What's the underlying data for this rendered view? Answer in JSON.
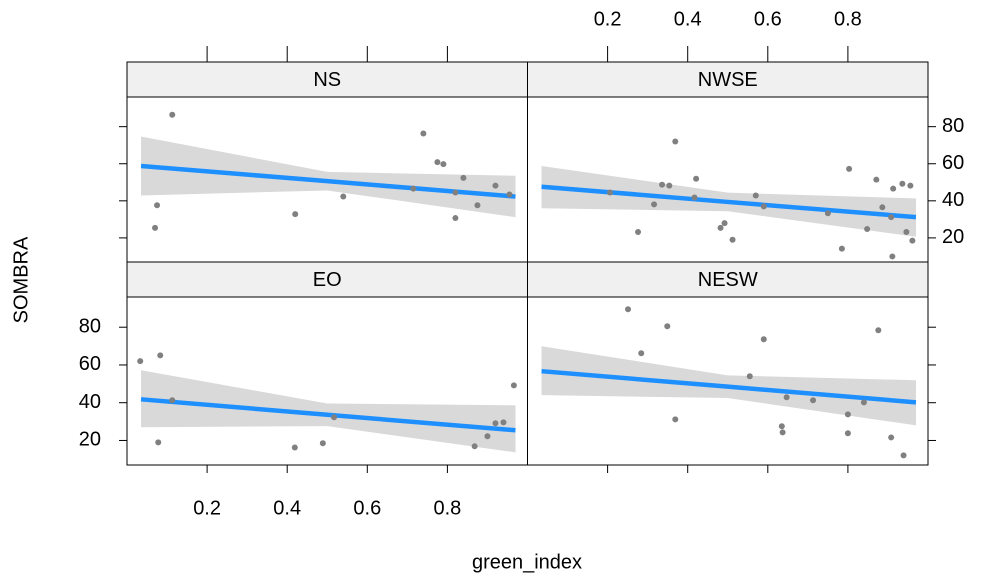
{
  "chart_data": {
    "type": "scatter",
    "xlabel": "green_index",
    "ylabel": "SOMBRA",
    "xlim": [
      0.0,
      1.0
    ],
    "ylim": [
      7,
      96
    ],
    "xticks": [
      0.2,
      0.4,
      0.6,
      0.8
    ],
    "yticks": [
      20,
      40,
      60,
      80
    ],
    "point_color": "#808080",
    "line_color": "#1e8fff",
    "band_color": "#d9d9d9",
    "strip_color": "#f0f0f0",
    "panels": [
      {
        "title": "NS",
        "x": [
          0.113,
          0.075,
          0.07,
          0.42,
          0.54,
          0.74,
          0.775,
          0.79,
          0.715,
          0.82,
          0.84,
          0.82,
          0.875,
          0.92,
          0.955
        ],
        "y": [
          86.4,
          37.6,
          25.4,
          32.8,
          42.3,
          76.3,
          60.9,
          59.8,
          46.6,
          44.5,
          52.4,
          30.7,
          37.6,
          48.2,
          43.4
        ],
        "fit": {
          "x": [
            0.035,
            0.5,
            0.97
          ],
          "y": [
            58.8,
            50.6,
            42.3
          ],
          "lower": [
            42.9,
            45.6,
            31.2
          ],
          "upper": [
            74.7,
            55.6,
            53.5
          ]
        }
      },
      {
        "title": "NWSE",
        "x": [
          0.206,
          0.316,
          0.276,
          0.336,
          0.354,
          0.369,
          0.417,
          0.421,
          0.482,
          0.492,
          0.512,
          0.57,
          0.59,
          0.75,
          0.785,
          0.803,
          0.848,
          0.871,
          0.886,
          0.908,
          0.913,
          0.911,
          0.936,
          0.946,
          0.956,
          0.961
        ],
        "y": [
          44.5,
          38.1,
          23.2,
          48.7,
          48.2,
          72.0,
          41.8,
          51.9,
          25.4,
          28.0,
          19.0,
          42.9,
          37.0,
          33.3,
          14.2,
          57.2,
          24.8,
          51.4,
          36.5,
          31.2,
          46.6,
          10.0,
          49.2,
          23.2,
          48.2,
          18.5
        ],
        "fit": {
          "x": [
            0.035,
            0.5,
            0.97
          ],
          "y": [
            47.6,
            39.4,
            31.2
          ],
          "lower": [
            36.0,
            34.4,
            20.6
          ],
          "upper": [
            58.8,
            44.4,
            41.3
          ]
        }
      },
      {
        "title": "EO",
        "x": [
          0.033,
          0.083,
          0.113,
          0.078,
          0.419,
          0.489,
          0.517,
          0.868,
          0.9,
          0.92,
          0.94,
          0.966
        ],
        "y": [
          62.0,
          65.1,
          41.3,
          19.0,
          16.3,
          18.5,
          32.3,
          16.9,
          22.2,
          29.1,
          29.6,
          49.2
        ],
        "fit": {
          "x": [
            0.035,
            0.5,
            0.97
          ],
          "y": [
            41.8,
            33.6,
            25.4
          ],
          "lower": [
            27.0,
            27.6,
            13.7
          ],
          "upper": [
            57.2,
            39.6,
            38.6
          ]
        }
      },
      {
        "title": "NESW",
        "x": [
          0.251,
          0.284,
          0.349,
          0.369,
          0.555,
          0.59,
          0.647,
          0.635,
          0.637,
          0.713,
          0.8,
          0.8,
          0.84,
          0.876,
          0.908,
          0.939
        ],
        "y": [
          89.5,
          66.2,
          80.5,
          31.2,
          54.0,
          73.6,
          42.9,
          27.5,
          24.3,
          41.3,
          33.8,
          23.8,
          40.2,
          78.4,
          21.6,
          12.1
        ],
        "fit": {
          "x": [
            0.035,
            0.5,
            0.97
          ],
          "y": [
            56.7,
            48.5,
            40.2
          ],
          "lower": [
            44.0,
            42.5,
            28.0
          ],
          "upper": [
            69.9,
            54.5,
            51.9
          ]
        }
      }
    ]
  }
}
